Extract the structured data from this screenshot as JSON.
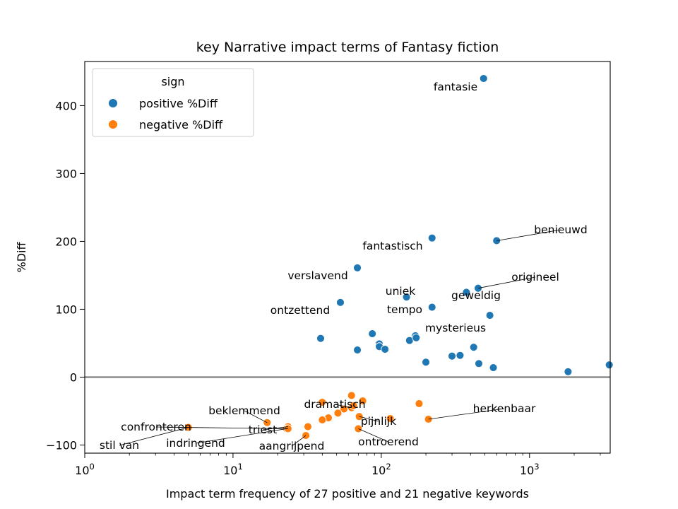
{
  "chart_data": {
    "type": "scatter",
    "title": "key Narrative impact terms of Fantasy fiction",
    "xlabel": "Impact term frequency of 27 positive and 21 negative keywords",
    "ylabel": "%Diff",
    "xscale": "log",
    "xlim": [
      1,
      3500
    ],
    "ylim": [
      -112,
      465
    ],
    "x_ticks": [
      1,
      10,
      100,
      1000
    ],
    "x_tick_labels": [
      "10",
      "10",
      "10",
      "10"
    ],
    "x_tick_exponents": [
      "0",
      "1",
      "2",
      "3"
    ],
    "y_ticks": [
      -100,
      0,
      100,
      200,
      300,
      400
    ],
    "y_tick_labels": [
      "−100",
      "0",
      "100",
      "200",
      "300",
      "400"
    ],
    "reference_line_y": 0,
    "legend": {
      "title": "sign",
      "placement": "top-left",
      "entries": [
        {
          "label": "positive %Diff",
          "color": "#1f77b4"
        },
        {
          "label": "negative %Diff",
          "color": "#ff7f0e"
        }
      ]
    },
    "series": [
      {
        "name": "positive %Diff",
        "color": "#1f77b4",
        "points": [
          {
            "x": 490,
            "y": 440,
            "label": "fantasie"
          },
          {
            "x": 600,
            "y": 201,
            "label": "benieuwd"
          },
          {
            "x": 220,
            "y": 205,
            "label": "fantastisch"
          },
          {
            "x": 69,
            "y": 161,
            "label": "verslavend"
          },
          {
            "x": 450,
            "y": 131,
            "label": "origineel"
          },
          {
            "x": 375,
            "y": 125,
            "label": "geweldig"
          },
          {
            "x": 148,
            "y": 118,
            "label": "uniek"
          },
          {
            "x": 220,
            "y": 103,
            "label": "tempo"
          },
          {
            "x": 53,
            "y": 110,
            "label": "ontzettend"
          },
          {
            "x": 170,
            "y": 61,
            "label": "mysterieus"
          },
          {
            "x": 540,
            "y": 91
          },
          {
            "x": 87,
            "y": 64
          },
          {
            "x": 39,
            "y": 57
          },
          {
            "x": 69,
            "y": 40
          },
          {
            "x": 97,
            "y": 49
          },
          {
            "x": 97,
            "y": 45
          },
          {
            "x": 106,
            "y": 41
          },
          {
            "x": 155,
            "y": 54
          },
          {
            "x": 172,
            "y": 58
          },
          {
            "x": 200,
            "y": 22
          },
          {
            "x": 300,
            "y": 31
          },
          {
            "x": 340,
            "y": 32
          },
          {
            "x": 420,
            "y": 44
          },
          {
            "x": 455,
            "y": 20
          },
          {
            "x": 570,
            "y": 14
          },
          {
            "x": 1820,
            "y": 8
          },
          {
            "x": 3450,
            "y": 18
          }
        ]
      },
      {
        "name": "negative %Diff",
        "color": "#ff7f0e",
        "points": [
          {
            "x": 208,
            "y": -62,
            "label": "herkenbaar"
          },
          {
            "x": 63,
            "y": -45,
            "label": "dramatisch"
          },
          {
            "x": 71,
            "y": -58,
            "label": "pijnlijk"
          },
          {
            "x": 70,
            "y": -76,
            "label": "ontroerend"
          },
          {
            "x": 31,
            "y": -86,
            "label": "aangrijpend"
          },
          {
            "x": 23.5,
            "y": -73,
            "label": "triest"
          },
          {
            "x": 23,
            "y": -76,
            "label": "indringend"
          },
          {
            "x": 17,
            "y": -67,
            "label": "beklemmend"
          },
          {
            "x": 23.5,
            "y": -76,
            "label": "confronteren"
          },
          {
            "x": 5,
            "y": -74,
            "label": "stil van"
          },
          {
            "x": 63,
            "y": -27
          },
          {
            "x": 40,
            "y": -37
          },
          {
            "x": 75,
            "y": -35
          },
          {
            "x": 65,
            "y": -42
          },
          {
            "x": 56,
            "y": -47
          },
          {
            "x": 51,
            "y": -53
          },
          {
            "x": 44,
            "y": -60
          },
          {
            "x": 40,
            "y": -63
          },
          {
            "x": 32,
            "y": -73
          },
          {
            "x": 115,
            "y": -61
          },
          {
            "x": 180,
            "y": -39
          }
        ]
      }
    ]
  }
}
